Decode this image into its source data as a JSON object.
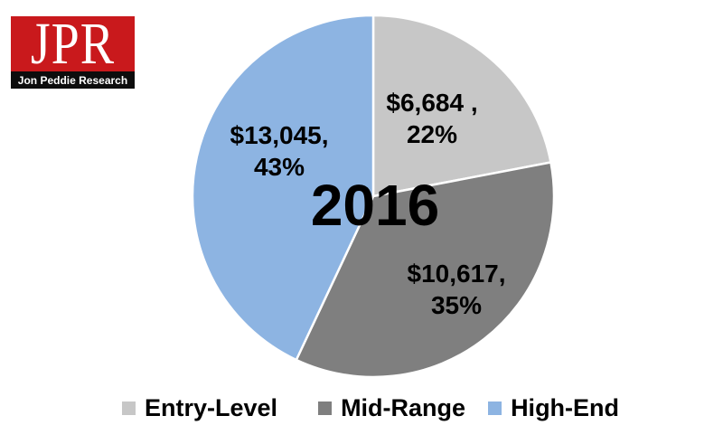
{
  "logo": {
    "monogram": "JPR",
    "subtitle": "Jon Peddie Research",
    "red": "#c9191c",
    "bar": "#0d0d0d"
  },
  "chart_data": {
    "type": "pie",
    "title": "2016",
    "direction": "clockwise",
    "start_angle_deg": 0,
    "legend_position": "bottom",
    "slice_border_color": "#ffffff",
    "categories": [
      "Entry-Level",
      "Mid-Range",
      "High-End"
    ],
    "segments": [
      {
        "label": "Entry-Level",
        "value": 6684,
        "percent": 22,
        "color": "#c7c7c7",
        "data_label": "$6,684 , 22%",
        "label_line1": "$6,684 ,",
        "label_line2": "22%"
      },
      {
        "label": "Mid-Range",
        "value": 10617,
        "percent": 35,
        "color": "#7f7f7f",
        "data_label": "$10,617, 35%",
        "label_line1": "$10,617,",
        "label_line2": "35%"
      },
      {
        "label": "High-End",
        "value": 13045,
        "percent": 43,
        "color": "#8db4e2",
        "data_label": "$13,045, 43%",
        "label_line1": "$13,045,",
        "label_line2": "43%"
      }
    ]
  }
}
